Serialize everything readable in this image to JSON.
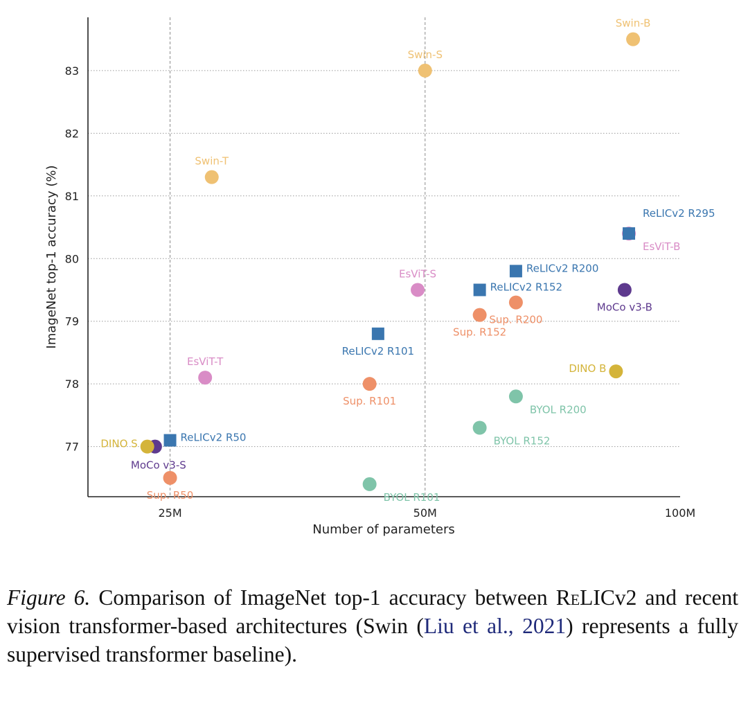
{
  "chart_data": {
    "type": "scatter",
    "title": "",
    "xlabel": "Number of parameters",
    "ylabel": "ImageNet top-1 accuracy (%)",
    "x_scale": "log",
    "x_units": "millions of parameters",
    "xlim": [
      20,
      100
    ],
    "ylim": [
      76.2,
      83.85
    ],
    "x_ticks": [
      {
        "value": 25,
        "label": "25M"
      },
      {
        "value": 50,
        "label": "50M"
      },
      {
        "value": 100,
        "label": "100M"
      }
    ],
    "y_ticks": [
      {
        "value": 77,
        "label": "77"
      },
      {
        "value": 78,
        "label": "78"
      },
      {
        "value": 79,
        "label": "79"
      },
      {
        "value": 80,
        "label": "80"
      },
      {
        "value": 81,
        "label": "81"
      },
      {
        "value": 82,
        "label": "82"
      },
      {
        "value": 83,
        "label": "83"
      }
    ],
    "grid": "dotted horizontal lines; dashed vertical lines at 25M and 50M",
    "colors": {
      "relic": "#3a76af",
      "swin": "#efc173",
      "esvit": "#d98cc6",
      "sup": "#ee9068",
      "byol": "#7fc4a9",
      "dino": "#d4b43a",
      "moco": "#5e3a8e"
    },
    "points": [
      {
        "name": "Swin-B",
        "x": 88,
        "y": 83.5,
        "group": "swin",
        "marker": "circle",
        "pos": "above"
      },
      {
        "name": "Swin-S",
        "x": 50,
        "y": 83.0,
        "group": "swin",
        "marker": "circle",
        "pos": "above"
      },
      {
        "name": "Swin-T",
        "x": 28,
        "y": 81.3,
        "group": "swin",
        "marker": "circle",
        "pos": "above"
      },
      {
        "name": "EsViT-B",
        "x": 87,
        "y": 80.4,
        "group": "esvit",
        "marker": "circle",
        "pos": "below-right"
      },
      {
        "name": "EsViT-S",
        "x": 49,
        "y": 79.5,
        "group": "esvit",
        "marker": "circle",
        "pos": "above"
      },
      {
        "name": "EsViT-T",
        "x": 27.5,
        "y": 78.1,
        "group": "esvit",
        "marker": "circle",
        "pos": "above"
      },
      {
        "name": "Sup. R200",
        "x": 64,
        "y": 79.3,
        "group": "sup",
        "marker": "circle",
        "pos": "below"
      },
      {
        "name": "Sup. R152",
        "x": 58,
        "y": 79.1,
        "group": "sup",
        "marker": "circle",
        "pos": "below"
      },
      {
        "name": "Sup. R101",
        "x": 43,
        "y": 78.0,
        "group": "sup",
        "marker": "circle",
        "pos": "below"
      },
      {
        "name": "Sup. R50",
        "x": 25,
        "y": 76.5,
        "group": "sup",
        "marker": "circle",
        "pos": "below"
      },
      {
        "name": "BYOL R200",
        "x": 64,
        "y": 77.8,
        "group": "byol",
        "marker": "circle",
        "pos": "below-right"
      },
      {
        "name": "BYOL R152",
        "x": 58,
        "y": 77.3,
        "group": "byol",
        "marker": "circle",
        "pos": "below-right"
      },
      {
        "name": "BYOL R101",
        "x": 43,
        "y": 76.4,
        "group": "byol",
        "marker": "circle",
        "pos": "below-right"
      },
      {
        "name": "DINO B",
        "x": 84,
        "y": 78.2,
        "group": "dino",
        "marker": "circle",
        "pos": "left"
      },
      {
        "name": "MoCo v3-B",
        "x": 86,
        "y": 79.5,
        "group": "moco",
        "marker": "circle",
        "pos": "below"
      },
      {
        "name": "MoCo v3-S",
        "x": 24,
        "y": 77.0,
        "group": "moco",
        "marker": "circle",
        "pos": "below-moco"
      },
      {
        "name": "DINO S",
        "x": 23.5,
        "y": 77.0,
        "group": "dino",
        "marker": "circle",
        "pos": "left"
      },
      {
        "name": "ReLICv2 R295",
        "x": 87,
        "y": 80.4,
        "group": "relic",
        "marker": "square",
        "pos": "above-right"
      },
      {
        "name": "ReLICv2 R200",
        "x": 64,
        "y": 79.8,
        "group": "relic",
        "marker": "square",
        "pos": "right"
      },
      {
        "name": "ReLICv2 R152",
        "x": 58,
        "y": 79.5,
        "group": "relic",
        "marker": "square",
        "pos": "right"
      },
      {
        "name": "ReLICv2 R101",
        "x": 44,
        "y": 78.8,
        "group": "relic",
        "marker": "square",
        "pos": "below"
      },
      {
        "name": "ReLICv2 R50",
        "x": 25,
        "y": 77.1,
        "group": "relic",
        "marker": "square",
        "pos": "right"
      }
    ]
  },
  "caption": {
    "figure_label": "Figure 6.",
    "text_1": " Comparison of ImageNet top-1 accuracy between ",
    "relic_first": "R",
    "relic_smallcaps": "eLIC",
    "relic_suffix": "v2",
    "text_2": " and recent vision transformer-based architectures (Swin (",
    "citation": "Liu et al., 2021",
    "text_3": ") represents a fully supervised transformer baseline)."
  }
}
